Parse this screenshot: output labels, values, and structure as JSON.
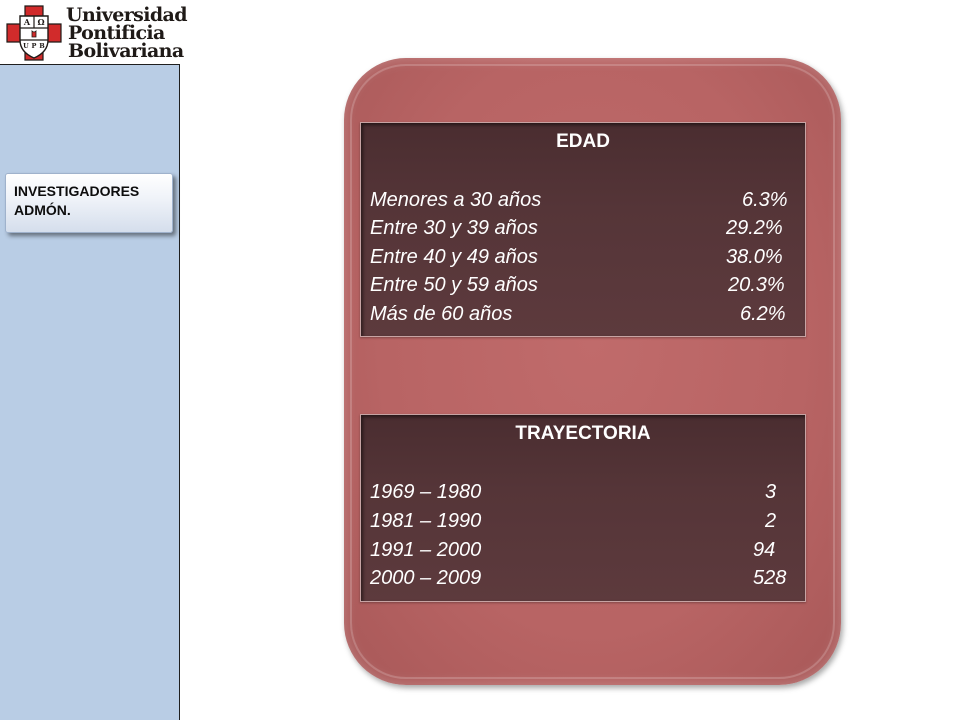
{
  "logo": {
    "name_lines": [
      "Universidad",
      "Pontificia",
      "Bolivariana"
    ],
    "seal_letters": [
      "A",
      "Ω",
      "U",
      "P",
      "B"
    ],
    "seal_color": "#d12b2b"
  },
  "sidebar": {
    "nav_button": {
      "lines": [
        "INVESTIGADORES",
        "ADMÓN."
      ]
    }
  },
  "main": {
    "age_table": {
      "title": "EDAD",
      "rows": [
        {
          "label": "Menores a 30 años",
          "value": "6.3%"
        },
        {
          "label": "Entre 30 y 39 años",
          "value": "29.2%"
        },
        {
          "label": "Entre 40 y 49 años",
          "value": "38.0%"
        },
        {
          "label": "Entre 50 y 59 años",
          "value": "20.3%"
        },
        {
          "label": "Más de 60 años",
          "value": "6.2%"
        }
      ]
    },
    "trajectory_table": {
      "title": "TRAYECTORIA",
      "rows": [
        {
          "label": "1969 – 1980",
          "value": "3"
        },
        {
          "label": "1981 – 1990",
          "value": "2"
        },
        {
          "label": "1991 – 2000",
          "value": "94"
        },
        {
          "label": "2000 – 2009",
          "value": "528"
        }
      ]
    }
  },
  "colors": {
    "sidebar_bg": "#b9cde5",
    "panel_bg": "#b86464",
    "table_bg": "#553538"
  }
}
